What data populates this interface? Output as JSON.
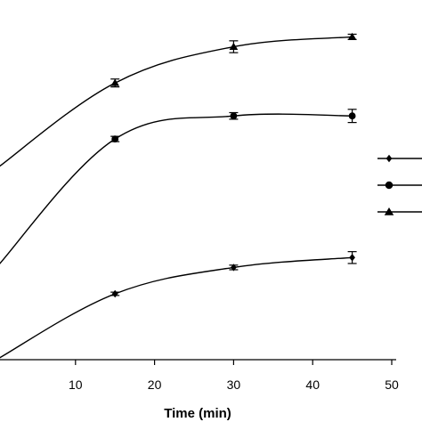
{
  "chart_data": {
    "type": "line",
    "xlabel": "Time (min)",
    "xlim": [
      0,
      50
    ],
    "x_ticks": [
      10,
      20,
      30,
      40,
      50
    ],
    "ylim": [
      0,
      100
    ],
    "grid": false,
    "legend_position": "right",
    "series": [
      {
        "marker": "triangle",
        "color": "#000000",
        "x": [
          0,
          15,
          30,
          45
        ],
        "y": [
          58,
          84,
          95,
          98
        ],
        "err": [
          null,
          1.2,
          1.8,
          0.8
        ]
      },
      {
        "marker": "circle",
        "color": "#000000",
        "x": [
          0,
          15,
          30,
          45
        ],
        "y": [
          28,
          67,
          74,
          74
        ],
        "err": [
          null,
          0.8,
          1.0,
          2.0
        ]
      },
      {
        "marker": "diamond",
        "color": "#000000",
        "x": [
          0,
          15,
          30,
          45
        ],
        "y": [
          0,
          20,
          28,
          31
        ],
        "err": [
          null,
          0.5,
          0.7,
          1.8
        ]
      }
    ]
  }
}
